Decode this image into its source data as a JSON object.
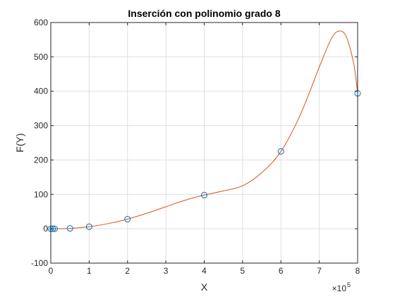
{
  "chart_data": {
    "type": "line",
    "title": "Inserción con polinomio grado 8",
    "xlabel": "X",
    "ylabel": "F(Y)",
    "x_multiplier_base": "×10",
    "x_multiplier_exp": "5",
    "xlim": [
      0,
      800000
    ],
    "ylim": [
      -100,
      600
    ],
    "xticks": [
      0,
      100000,
      200000,
      300000,
      400000,
      500000,
      600000,
      700000,
      800000
    ],
    "xtick_labels": [
      "0",
      "1",
      "2",
      "3",
      "4",
      "5",
      "6",
      "7",
      "8"
    ],
    "yticks": [
      -100,
      0,
      100,
      200,
      300,
      400,
      500,
      600
    ],
    "ytick_labels": [
      "-100",
      "0",
      "100",
      "200",
      "300",
      "400",
      "500",
      "600"
    ],
    "grid": true,
    "colors": {
      "curve": "#D95319",
      "markers": "#0072BD",
      "grid": "#DFDFDF",
      "axes": "#262626"
    },
    "series": [
      {
        "type": "scatter",
        "marker": "circle-open",
        "points": [
          [
            0,
            0
          ],
          [
            5000,
            0
          ],
          [
            10000,
            0
          ],
          [
            50000,
            1
          ],
          [
            100000,
            6
          ],
          [
            200000,
            28
          ],
          [
            400000,
            98
          ],
          [
            600000,
            225
          ],
          [
            800000,
            394
          ]
        ]
      },
      {
        "type": "line",
        "points": [
          [
            0,
            0
          ],
          [
            50000,
            1
          ],
          [
            100000,
            6
          ],
          [
            150000,
            15
          ],
          [
            200000,
            28
          ],
          [
            250000,
            45
          ],
          [
            300000,
            64
          ],
          [
            350000,
            83
          ],
          [
            400000,
            98
          ],
          [
            450000,
            110
          ],
          [
            500000,
            125
          ],
          [
            550000,
            163
          ],
          [
            600000,
            225
          ],
          [
            650000,
            330
          ],
          [
            700000,
            470
          ],
          [
            730000,
            550
          ],
          [
            750000,
            575
          ],
          [
            770000,
            560
          ],
          [
            790000,
            480
          ],
          [
            800000,
            394
          ]
        ]
      }
    ]
  }
}
